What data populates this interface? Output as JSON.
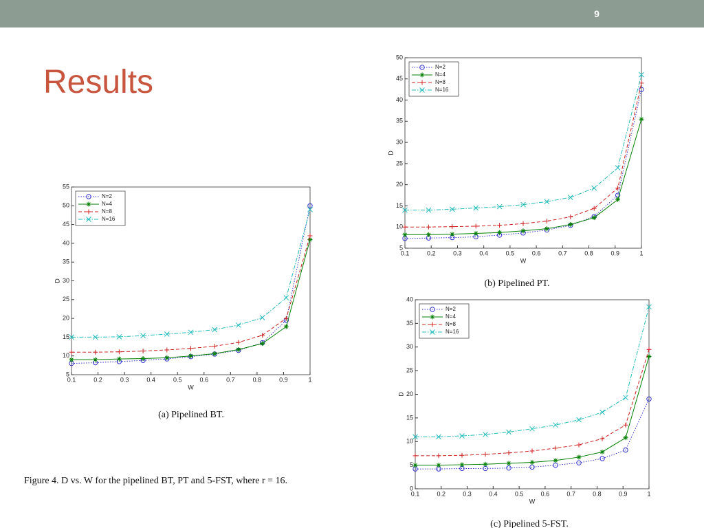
{
  "slide": {
    "number": "9",
    "title": "Results",
    "caption": "Figure 4.   D vs. W for the pipelined BT, PT and 5-FST, where r = 16."
  },
  "chart_data": [
    {
      "type": "line",
      "caption": "(a) Pipelined BT.",
      "xlabel": "W",
      "ylabel": "D",
      "x": [
        0.1,
        0.19,
        0.28,
        0.37,
        0.46,
        0.55,
        0.64,
        0.73,
        0.82,
        0.91,
        1.0
      ],
      "xlim": [
        0.1,
        1
      ],
      "xticks": [
        0.1,
        0.2,
        0.3,
        0.4,
        0.5,
        0.6,
        0.7,
        0.8,
        0.9,
        1
      ],
      "ylim": [
        5,
        55
      ],
      "yticks": [
        5,
        10,
        15,
        20,
        25,
        30,
        35,
        40,
        45,
        50,
        55
      ],
      "legend": "upper-left",
      "series": [
        {
          "name": "N=2",
          "color": "#3333cc",
          "marker": "o",
          "dash": "dotted",
          "values": [
            8,
            8.2,
            8.5,
            8.8,
            9.2,
            9.8,
            10.5,
            11.5,
            13.5,
            19.5,
            50
          ]
        },
        {
          "name": "N=4",
          "color": "#007f00",
          "marker": "*",
          "dash": "solid",
          "values": [
            9,
            9,
            9.2,
            9.3,
            9.5,
            10,
            10.6,
            11.7,
            13.3,
            17.8,
            41
          ]
        },
        {
          "name": "N=8",
          "color": "#cc2222",
          "marker": "+",
          "dash": "dashed",
          "values": [
            11,
            11,
            11.1,
            11.3,
            11.6,
            12,
            12.6,
            13.6,
            15.5,
            20,
            42
          ]
        },
        {
          "name": "N=16",
          "color": "#22bbbb",
          "marker": "x",
          "dash": "dashdot",
          "values": [
            15,
            15,
            15.1,
            15.4,
            15.8,
            16.3,
            17,
            18.2,
            20.2,
            25.5,
            49
          ]
        }
      ]
    },
    {
      "type": "line",
      "caption": "(b) Pipelined PT.",
      "xlabel": "W",
      "ylabel": "D",
      "x": [
        0.1,
        0.19,
        0.28,
        0.37,
        0.46,
        0.55,
        0.64,
        0.73,
        0.82,
        0.91,
        1.0
      ],
      "xlim": [
        0.1,
        1
      ],
      "xticks": [
        0.1,
        0.2,
        0.3,
        0.4,
        0.5,
        0.6,
        0.7,
        0.8,
        0.9,
        1
      ],
      "ylim": [
        5,
        50
      ],
      "yticks": [
        5,
        10,
        15,
        20,
        25,
        30,
        35,
        40,
        45,
        50
      ],
      "legend": "upper-left",
      "series": [
        {
          "name": "N=2",
          "color": "#3333cc",
          "marker": "o",
          "dash": "dotted",
          "values": [
            7.3,
            7.4,
            7.5,
            7.7,
            8.1,
            8.6,
            9.3,
            10.4,
            12.5,
            17.5,
            42.5
          ]
        },
        {
          "name": "N=4",
          "color": "#007f00",
          "marker": "*",
          "dash": "solid",
          "values": [
            8.2,
            8.2,
            8.3,
            8.5,
            8.7,
            9.1,
            9.6,
            10.6,
            12.2,
            16.5,
            35.5
          ]
        },
        {
          "name": "N=8",
          "color": "#cc2222",
          "marker": "+",
          "dash": "dashed",
          "values": [
            10,
            10,
            10.1,
            10.2,
            10.4,
            10.8,
            11.4,
            12.4,
            14.4,
            19.2,
            44
          ]
        },
        {
          "name": "N=16",
          "color": "#22bbbb",
          "marker": "x",
          "dash": "dashdot",
          "values": [
            14,
            14,
            14.2,
            14.5,
            14.8,
            15.3,
            16,
            17,
            19.2,
            24,
            46
          ]
        }
      ]
    },
    {
      "type": "line",
      "caption": "(c) Pipelined 5-FST.",
      "xlabel": "W",
      "ylabel": "D",
      "x": [
        0.1,
        0.19,
        0.28,
        0.37,
        0.46,
        0.55,
        0.64,
        0.73,
        0.82,
        0.91,
        1.0
      ],
      "xlim": [
        0.1,
        1
      ],
      "xticks": [
        0.1,
        0.2,
        0.3,
        0.4,
        0.5,
        0.6,
        0.7,
        0.8,
        0.9,
        1
      ],
      "ylim": [
        0,
        40
      ],
      "yticks": [
        0,
        5,
        10,
        15,
        20,
        25,
        30,
        35,
        40
      ],
      "legend": "upper-left",
      "series": [
        {
          "name": "N=2",
          "color": "#3333cc",
          "marker": "o",
          "dash": "dotted",
          "values": [
            4.2,
            4.2,
            4.3,
            4.3,
            4.4,
            4.6,
            5,
            5.5,
            6.4,
            8.2,
            19
          ]
        },
        {
          "name": "N=4",
          "color": "#007f00",
          "marker": "*",
          "dash": "solid",
          "values": [
            5,
            5,
            5.1,
            5.2,
            5.4,
            5.6,
            6,
            6.7,
            7.8,
            10.8,
            28
          ]
        },
        {
          "name": "N=8",
          "color": "#cc2222",
          "marker": "+",
          "dash": "dashed",
          "values": [
            7,
            7,
            7.1,
            7.3,
            7.6,
            8,
            8.6,
            9.3,
            10.6,
            13.5,
            29.5
          ]
        },
        {
          "name": "N=16",
          "color": "#22bbbb",
          "marker": "x",
          "dash": "dashdot",
          "values": [
            11,
            11,
            11.2,
            11.5,
            12,
            12.7,
            13.5,
            14.6,
            16.2,
            19.3,
            38.5
          ]
        }
      ]
    }
  ]
}
